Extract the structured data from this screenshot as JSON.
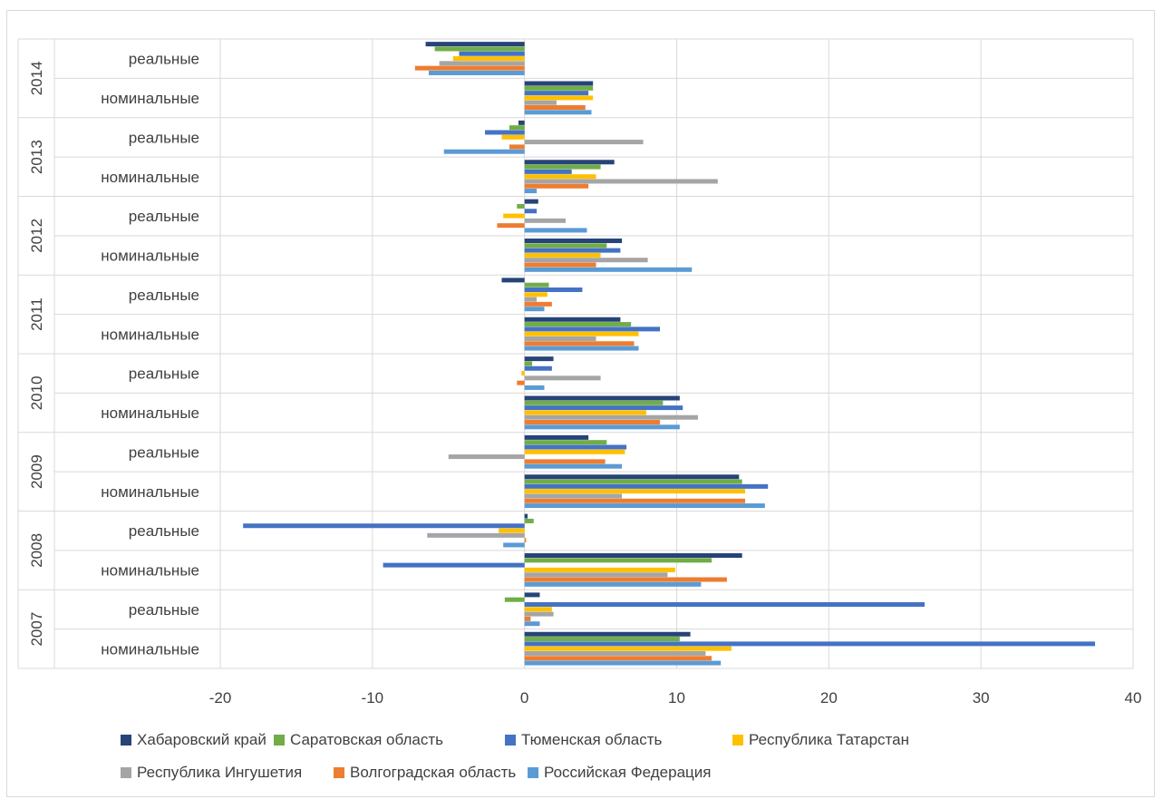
{
  "chart_data": {
    "type": "bar",
    "orientation": "horizontal",
    "groups": [
      {
        "year": "2014",
        "categories": [
          "реальные",
          "номинальные"
        ]
      },
      {
        "year": "2013",
        "categories": [
          "реальные",
          "номинальные"
        ]
      },
      {
        "year": "2012",
        "categories": [
          "реальные",
          "номинальные"
        ]
      },
      {
        "year": "2011",
        "categories": [
          "реальные",
          "номинальные"
        ]
      },
      {
        "year": "2010",
        "categories": [
          "реальные",
          "номинальные"
        ]
      },
      {
        "year": "2009",
        "categories": [
          "реальные",
          "номинальные"
        ]
      },
      {
        "year": "2008",
        "categories": [
          "реальные",
          "номинальные"
        ]
      },
      {
        "year": "2007",
        "categories": [
          "реальные",
          "номинальные"
        ]
      }
    ],
    "xlim": [
      -20,
      40
    ],
    "xticks": [
      "-20",
      "-10",
      "0",
      "10",
      "20",
      "30",
      "40"
    ],
    "grid": true,
    "legend_position": "bottom",
    "series": [
      {
        "name": "Хабаровский край",
        "color": "#264478",
        "values": [
          [
            -6.5,
            4.5
          ],
          [
            -0.4,
            5.9
          ],
          [
            0.9,
            6.4
          ],
          [
            -1.5,
            6.3
          ],
          [
            1.9,
            10.2
          ],
          [
            4.2,
            14.1
          ],
          [
            0.2,
            14.3
          ],
          [
            1.0,
            10.9
          ]
        ]
      },
      {
        "name": "Саратовская область",
        "color": "#70ad47",
        "values": [
          [
            -5.9,
            4.5
          ],
          [
            -1.0,
            5.0
          ],
          [
            -0.5,
            5.4
          ],
          [
            1.6,
            7.0
          ],
          [
            0.5,
            9.1
          ],
          [
            5.4,
            14.3
          ],
          [
            0.6,
            12.3
          ],
          [
            -1.3,
            10.2
          ]
        ]
      },
      {
        "name": "Тюменская область",
        "color": "#4472c4",
        "values": [
          [
            -4.3,
            4.2
          ],
          [
            -2.6,
            3.1
          ],
          [
            0.8,
            6.3
          ],
          [
            3.8,
            8.9
          ],
          [
            1.8,
            10.4
          ],
          [
            6.7,
            16.0
          ],
          [
            -18.5,
            -9.3
          ],
          [
            26.3,
            37.5
          ]
        ]
      },
      {
        "name": "Республика Татарстан",
        "color": "#ffc000",
        "values": [
          [
            -4.7,
            4.5
          ],
          [
            -1.5,
            4.7
          ],
          [
            -1.4,
            5.0
          ],
          [
            1.5,
            7.5
          ],
          [
            -0.2,
            8.0
          ],
          [
            6.6,
            14.5
          ],
          [
            -1.7,
            9.9
          ],
          [
            1.8,
            13.6
          ]
        ]
      },
      {
        "name": "Республика Ингушетия",
        "color": "#a5a5a5",
        "values": [
          [
            -5.6,
            2.1
          ],
          [
            7.8,
            12.7
          ],
          [
            2.7,
            8.1
          ],
          [
            0.8,
            4.7
          ],
          [
            5.0,
            11.4
          ],
          [
            -5.0,
            6.4
          ],
          [
            -6.4,
            9.4
          ],
          [
            1.9,
            11.9
          ]
        ]
      },
      {
        "name": "Волгоградская область",
        "color": "#ed7d31",
        "values": [
          [
            -7.2,
            4.0
          ],
          [
            -1.0,
            4.2
          ],
          [
            -1.8,
            4.7
          ],
          [
            1.8,
            7.2
          ],
          [
            -0.5,
            8.9
          ],
          [
            5.3,
            14.5
          ],
          [
            0.1,
            13.3
          ],
          [
            0.4,
            12.3
          ]
        ]
      },
      {
        "name": "Российская Федерация",
        "color": "#5b9bd5",
        "values": [
          [
            -6.3,
            4.4
          ],
          [
            -5.3,
            0.8
          ],
          [
            4.1,
            11.0
          ],
          [
            1.3,
            7.5
          ],
          [
            1.3,
            10.2
          ],
          [
            6.4,
            15.8
          ],
          [
            -1.4,
            11.6
          ],
          [
            1.0,
            12.9
          ]
        ]
      }
    ]
  }
}
